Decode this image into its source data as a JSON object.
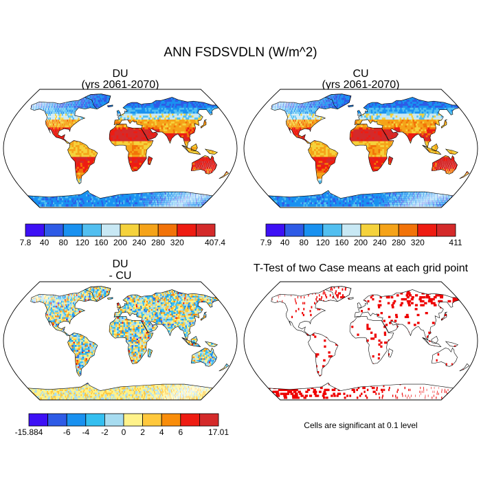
{
  "title": "ANN FSDSVDLN (W/m^2)",
  "colors": {
    "outline": "#000000",
    "land_fill": "#ffffff",
    "sig_cells": "#ee0000"
  },
  "chart_data": [
    {
      "type": "heatmap",
      "panel": "top-left",
      "title": "DU",
      "subtitle": "(yrs 2061-2070)",
      "projection": "Robinson",
      "colorbar": {
        "labels": [
          "7.8",
          "40",
          "80",
          "120",
          "160",
          "200",
          "240",
          "280",
          "320",
          "407.4"
        ],
        "colors": [
          "#3d10f5",
          "#2e5be6",
          "#1991f0",
          "#52bff0",
          "#c8e8f4",
          "#f5d23c",
          "#f5a319",
          "#f27309",
          "#ee1c12",
          "#d42a2a"
        ],
        "min": 7.8,
        "max": 407.4
      }
    },
    {
      "type": "heatmap",
      "panel": "top-right",
      "title": "CU",
      "subtitle": "(yrs 2061-2070)",
      "projection": "Robinson",
      "colorbar": {
        "labels": [
          "7.9",
          "40",
          "80",
          "120",
          "160",
          "200",
          "240",
          "280",
          "320",
          "411"
        ],
        "colors": [
          "#3d10f5",
          "#2e5be6",
          "#1991f0",
          "#52bff0",
          "#c8e8f4",
          "#f5d23c",
          "#f5a319",
          "#f27309",
          "#ee1c12",
          "#d42a2a"
        ],
        "min": 7.9,
        "max": 411
      }
    },
    {
      "type": "heatmap",
      "panel": "bottom-left",
      "title": "DU",
      "subtitle": "- CU",
      "projection": "Robinson",
      "colorbar": {
        "labels": [
          "-15.884",
          "-6",
          "-4",
          "-2",
          "0",
          "2",
          "4",
          "6",
          "17.01"
        ],
        "colors": [
          "#3d10f5",
          "#2e5be6",
          "#1991f0",
          "#34bff0",
          "#a7dcf0",
          "#fff28a",
          "#ffc83c",
          "#f98d0a",
          "#ee1c12",
          "#d42a2a"
        ],
        "min": -15.884,
        "max": 17.01
      }
    },
    {
      "type": "heatmap",
      "panel": "bottom-right",
      "title": "T-Test of two Case means at each grid point",
      "subtitle": "",
      "projection": "Robinson",
      "note": "Cells are significant at 0.1 level"
    }
  ]
}
